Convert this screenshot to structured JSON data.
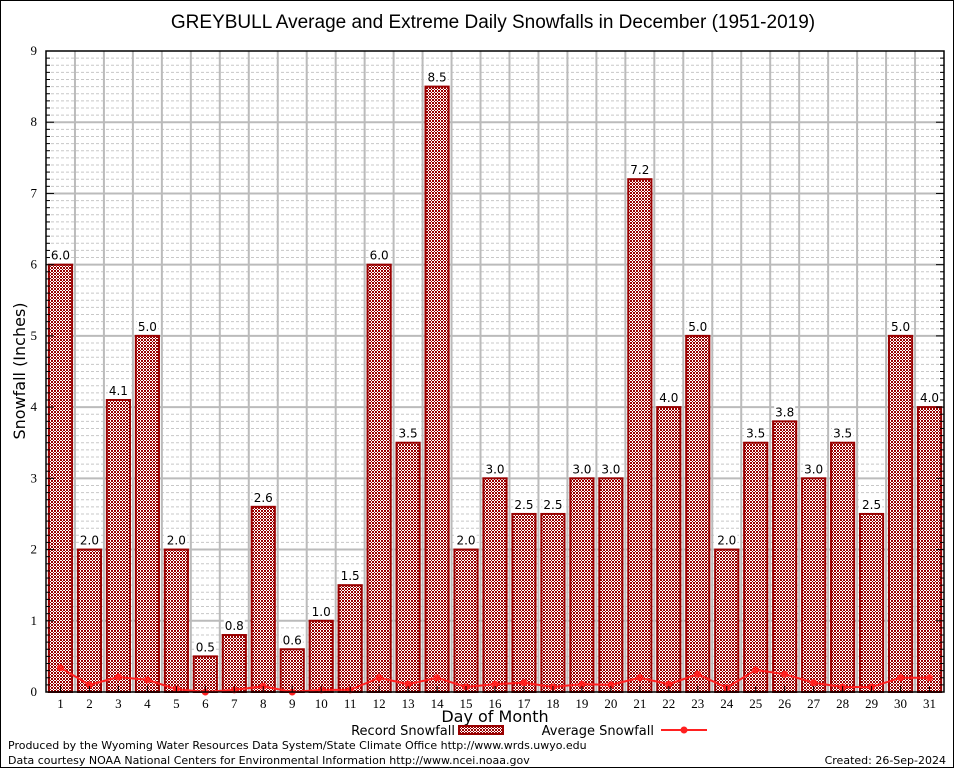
{
  "chart_data": {
    "type": "bar",
    "title": "GREYBULL Average and Extreme Daily Snowfalls in December (1951-2019)",
    "xlabel": "Day of Month",
    "ylabel": "Snowfall (Inches)",
    "ylim": [
      0,
      9
    ],
    "yticks": [
      "0",
      "1",
      "2",
      "3",
      "4",
      "5",
      "6",
      "7",
      "8",
      "9"
    ],
    "grid": true,
    "categories": [
      "1",
      "2",
      "3",
      "4",
      "5",
      "6",
      "7",
      "8",
      "9",
      "10",
      "11",
      "12",
      "13",
      "14",
      "15",
      "16",
      "17",
      "18",
      "19",
      "20",
      "21",
      "22",
      "23",
      "24",
      "25",
      "26",
      "27",
      "28",
      "29",
      "30",
      "31"
    ],
    "series": [
      {
        "name": "Record Snowfall",
        "type": "bar",
        "color": "#990000",
        "values": [
          6.0,
          2.0,
          4.1,
          5.0,
          2.0,
          0.5,
          0.8,
          2.6,
          0.6,
          1.0,
          1.5,
          6.0,
          3.5,
          8.5,
          2.0,
          3.0,
          2.5,
          2.5,
          3.0,
          3.0,
          7.2,
          4.0,
          5.0,
          2.0,
          3.5,
          3.8,
          3.0,
          3.5,
          2.5,
          5.0,
          4.0
        ],
        "labels": [
          "6.0",
          "2.0",
          "4.1",
          "5.0",
          "2.0",
          "0.5",
          "0.8",
          "2.6",
          "0.6",
          "1.0",
          "1.5",
          "6.0",
          "3.5",
          "8.5",
          "2.0",
          "3.0",
          "2.5",
          "2.5",
          "3.0",
          "3.0",
          "7.2",
          "4.0",
          "5.0",
          "2.0",
          "3.5",
          "3.8",
          "3.0",
          "3.5",
          "2.5",
          "5.0",
          "4.0"
        ]
      },
      {
        "name": "Average Snowfall",
        "type": "line",
        "color": "#ff2020",
        "values": [
          0.34,
          0.1,
          0.21,
          0.17,
          0.04,
          0.0,
          0.03,
          0.08,
          0.0,
          0.03,
          0.03,
          0.2,
          0.11,
          0.2,
          0.07,
          0.11,
          0.13,
          0.07,
          0.11,
          0.1,
          0.2,
          0.11,
          0.25,
          0.06,
          0.31,
          0.25,
          0.13,
          0.07,
          0.07,
          0.2,
          0.2
        ]
      }
    ],
    "legend": "bottom-center"
  },
  "footer": {
    "producer": "Produced by the Wyoming Water Resources Data System/State Climate Office http://www.wrds.uwyo.edu",
    "source": "Data courtesy NOAA National Centers for Environmental Information http://www.ncei.noaa.gov",
    "created": "Created: 26-Sep-2024"
  }
}
